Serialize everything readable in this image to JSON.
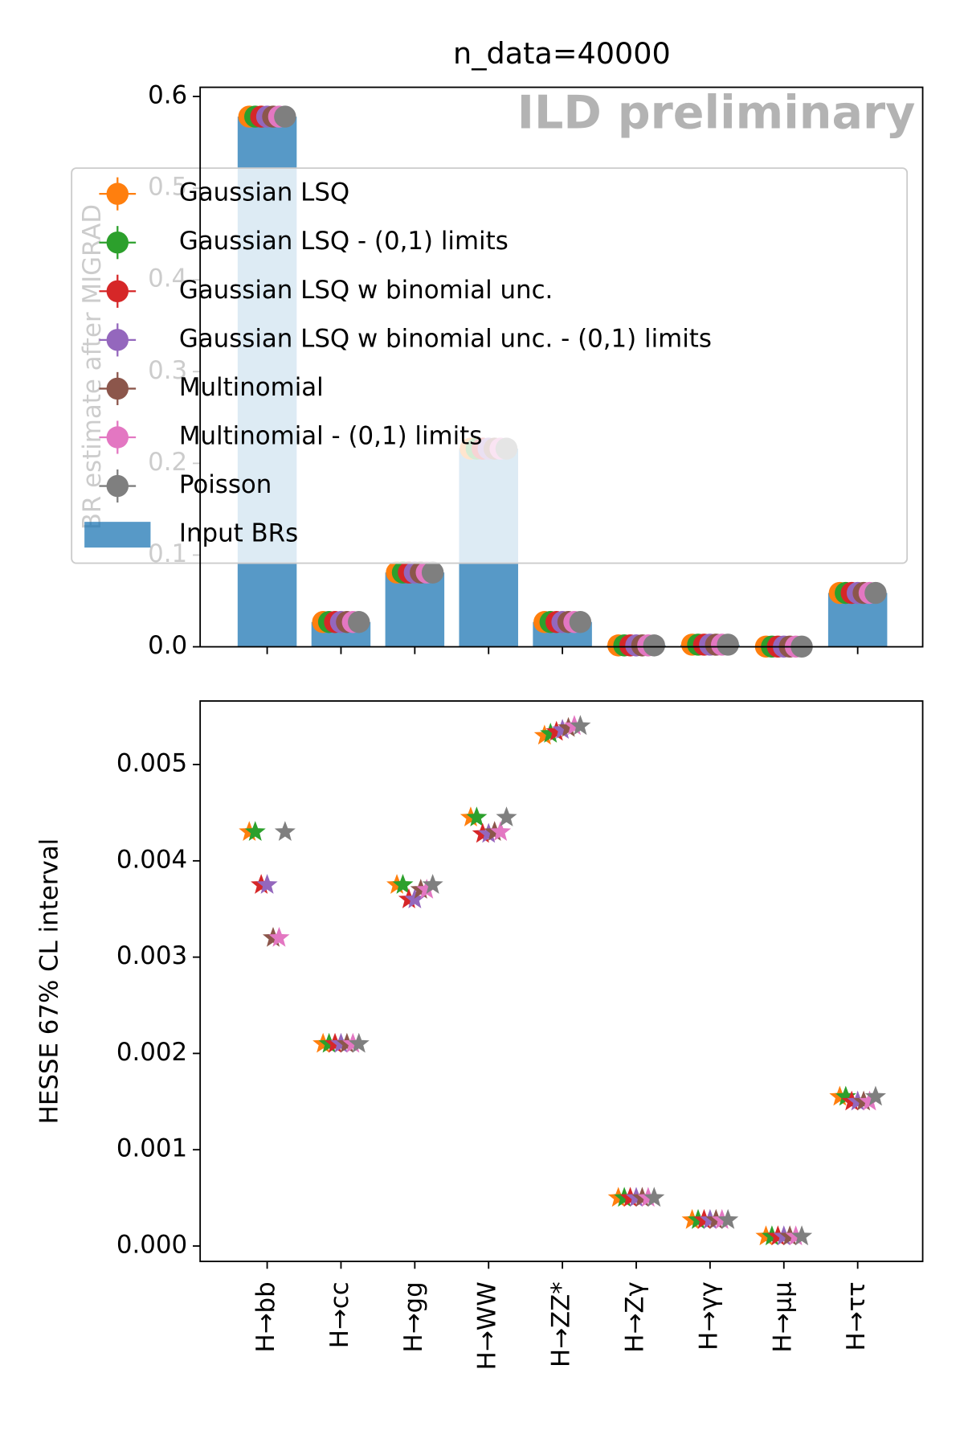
{
  "chart_data": [
    {
      "type": "bar",
      "title": "n_data=40000",
      "annotation": "ILD preliminary",
      "ylabel": "BR estimate after MIGRAD",
      "bars": {
        "name": "Input BRs",
        "color": "#1f77b4",
        "values": [
          0.578,
          0.027,
          0.081,
          0.216,
          0.027,
          0.0015,
          0.0023,
          0.0002,
          0.0587
        ]
      },
      "series": [
        {
          "name": "Gaussian LSQ",
          "color": "#ff7f0e",
          "values": [
            0.578,
            0.027,
            0.081,
            0.216,
            0.027,
            0.0015,
            0.0023,
            0.0002,
            0.0587
          ]
        },
        {
          "name": "Gaussian LSQ - (0,1) limits",
          "color": "#2ca02c",
          "values": [
            0.578,
            0.027,
            0.081,
            0.216,
            0.027,
            0.0015,
            0.0023,
            0.0002,
            0.0587
          ]
        },
        {
          "name": "Gaussian LSQ w binomial unc.",
          "color": "#d62728",
          "values": [
            0.578,
            0.027,
            0.081,
            0.216,
            0.027,
            0.0015,
            0.0023,
            0.0002,
            0.0587
          ]
        },
        {
          "name": "Gaussian LSQ w binomial unc. - (0,1) limits",
          "color": "#9467bd",
          "values": [
            0.578,
            0.027,
            0.081,
            0.216,
            0.027,
            0.0015,
            0.0023,
            0.0002,
            0.0587
          ]
        },
        {
          "name": "Multinomial",
          "color": "#8c564b",
          "values": [
            0.578,
            0.027,
            0.081,
            0.216,
            0.027,
            0.0015,
            0.0023,
            0.0002,
            0.0587
          ]
        },
        {
          "name": "Multinomial - (0,1) limits",
          "color": "#e377c2",
          "values": [
            0.578,
            0.027,
            0.081,
            0.216,
            0.027,
            0.0015,
            0.0023,
            0.0002,
            0.0587
          ]
        },
        {
          "name": "Poisson",
          "color": "#7f7f7f",
          "values": [
            0.578,
            0.027,
            0.081,
            0.216,
            0.027,
            0.0015,
            0.0023,
            0.0002,
            0.0587
          ]
        }
      ],
      "ylim": [
        0,
        0.61
      ],
      "yticks": [
        {
          "value": 0,
          "label": "0.0"
        },
        0.1,
        0.2,
        0.3,
        0.4,
        0.5,
        0.6
      ]
    },
    {
      "type": "scatter",
      "marker": "star",
      "ylabel": "HESSE 67% CL interval",
      "categories": [
        "H→bb",
        "H→cc",
        "H→gg",
        "H→WW",
        "H→ZZ*",
        "H→Zγ",
        "H→γγ",
        "H→μμ",
        "H→ττ"
      ],
      "series": [
        {
          "color": "#ff7f0e",
          "values": [
            0.0043,
            0.0021,
            0.00375,
            0.00445,
            0.0053,
            0.0005,
            0.00027,
            0.0001,
            0.00155
          ]
        },
        {
          "color": "#2ca02c",
          "values": [
            0.0043,
            0.0021,
            0.00375,
            0.00445,
            0.00532,
            0.0005,
            0.00027,
            0.0001,
            0.00155
          ]
        },
        {
          "color": "#d62728",
          "values": [
            0.00375,
            0.0021,
            0.0036,
            0.00428,
            0.00534,
            0.0005,
            0.00027,
            0.0001,
            0.0015
          ]
        },
        {
          "color": "#9467bd",
          "values": [
            0.00375,
            0.0021,
            0.0036,
            0.00428,
            0.00536,
            0.0005,
            0.00027,
            0.0001,
            0.0015
          ]
        },
        {
          "color": "#8c564b",
          "values": [
            0.0032,
            0.0021,
            0.0037,
            0.0043,
            0.00538,
            0.0005,
            0.00027,
            0.0001,
            0.0015
          ]
        },
        {
          "color": "#e377c2",
          "values": [
            0.0032,
            0.0021,
            0.0037,
            0.0043,
            0.0054,
            0.0005,
            0.00027,
            0.0001,
            0.0015
          ]
        },
        {
          "color": "#7f7f7f",
          "values": [
            0.0043,
            0.0021,
            0.00375,
            0.00445,
            0.0054,
            0.0005,
            0.00027,
            0.0001,
            0.00155
          ]
        }
      ],
      "ylim": [
        -0.00016,
        0.00566
      ],
      "yticks": [
        {
          "value": 0,
          "label": "0.000"
        },
        0.001,
        0.002,
        0.003,
        0.004,
        0.005
      ]
    }
  ]
}
